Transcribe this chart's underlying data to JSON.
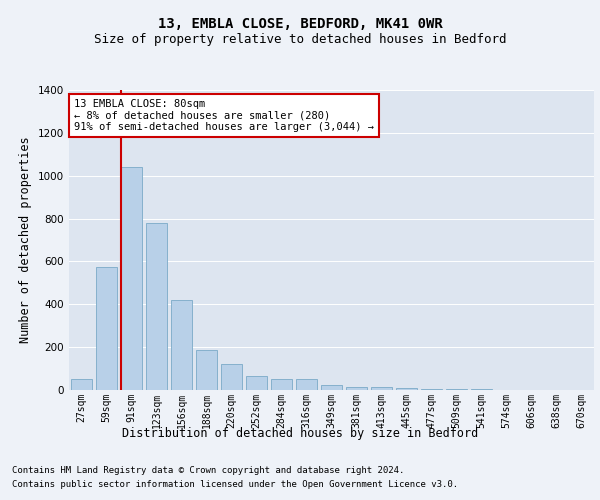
{
  "title1": "13, EMBLA CLOSE, BEDFORD, MK41 0WR",
  "title2": "Size of property relative to detached houses in Bedford",
  "xlabel": "Distribution of detached houses by size in Bedford",
  "ylabel": "Number of detached properties",
  "categories": [
    "27sqm",
    "59sqm",
    "91sqm",
    "123sqm",
    "156sqm",
    "188sqm",
    "220sqm",
    "252sqm",
    "284sqm",
    "316sqm",
    "349sqm",
    "381sqm",
    "413sqm",
    "445sqm",
    "477sqm",
    "509sqm",
    "541sqm",
    "574sqm",
    "606sqm",
    "638sqm",
    "670sqm"
  ],
  "values": [
    50,
    575,
    1040,
    780,
    420,
    185,
    120,
    65,
    50,
    50,
    22,
    15,
    15,
    10,
    5,
    5,
    3,
    2,
    1,
    1,
    0
  ],
  "bar_color": "#b8d0e8",
  "bar_edge_color": "#7aaac8",
  "vline_color": "#cc0000",
  "annotation_text": "13 EMBLA CLOSE: 80sqm\n← 8% of detached houses are smaller (280)\n91% of semi-detached houses are larger (3,044) →",
  "annotation_box_color": "#ffffff",
  "annotation_box_edge": "#cc0000",
  "ylim": [
    0,
    1400
  ],
  "yticks": [
    0,
    200,
    400,
    600,
    800,
    1000,
    1200,
    1400
  ],
  "bg_color": "#eef2f8",
  "plot_bg_color": "#dde5f0",
  "footer1": "Contains HM Land Registry data © Crown copyright and database right 2024.",
  "footer2": "Contains public sector information licensed under the Open Government Licence v3.0.",
  "title1_fontsize": 10,
  "title2_fontsize": 9,
  "tick_fontsize": 7,
  "ylabel_fontsize": 8.5,
  "xlabel_fontsize": 8.5,
  "footer_fontsize": 6.5
}
